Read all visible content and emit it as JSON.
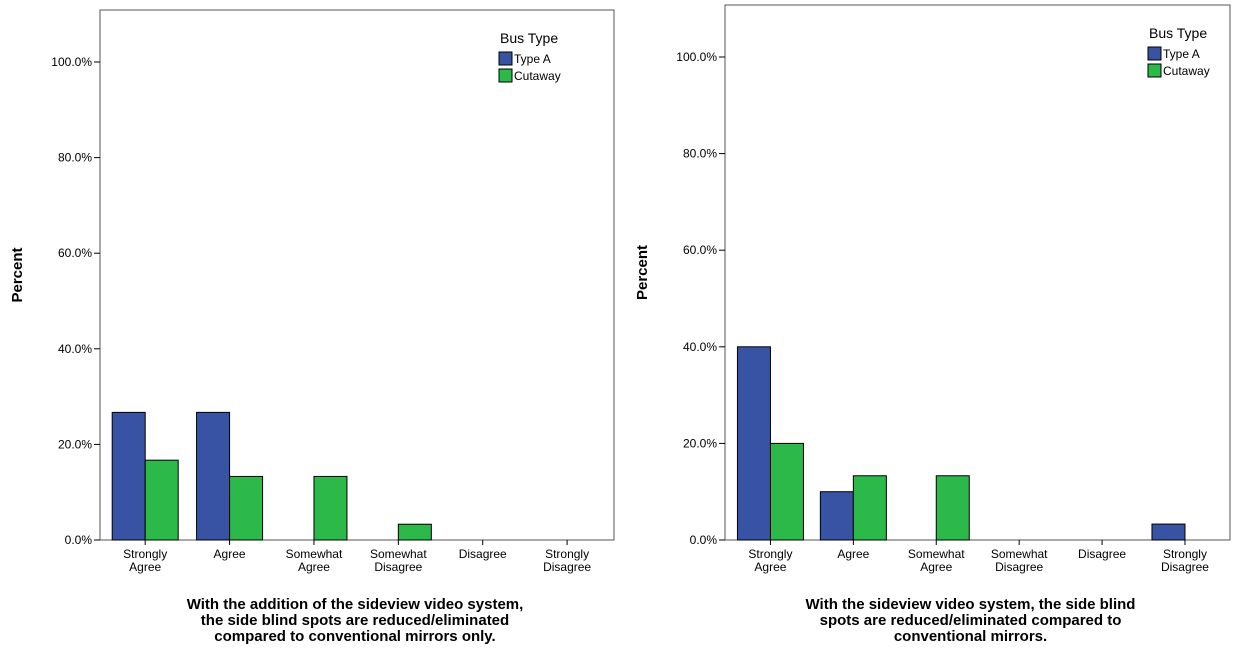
{
  "chart_data": [
    {
      "type": "bar",
      "title": "",
      "ylabel": "Percent",
      "xlabel": [
        "With the addition of the sideview video system,",
        "the side blind spots are reduced/eliminated",
        "compared to conventional mirrors only."
      ],
      "ylim": [
        0,
        100
      ],
      "yticks": [
        0,
        20,
        40,
        60,
        80,
        100
      ],
      "ytick_labels": [
        "0.0%",
        "20.0%",
        "40.0%",
        "60.0%",
        "80.0%",
        "100.0%"
      ],
      "categories": [
        [
          "Strongly",
          "Agree"
        ],
        [
          "Agree"
        ],
        [
          "Somewhat",
          "Agree"
        ],
        [
          "Somewhat",
          "Disagree"
        ],
        [
          "Disagree"
        ],
        [
          "Strongly",
          "Disagree"
        ]
      ],
      "legend": {
        "title": "Bus Type",
        "position": "top-right"
      },
      "series": [
        {
          "name": "Type A",
          "color": "#3953a4",
          "values": [
            26.7,
            26.7,
            0,
            0,
            0,
            0
          ]
        },
        {
          "name": "Cutaway",
          "color": "#2db84a",
          "values": [
            16.7,
            13.3,
            13.3,
            3.3,
            0,
            0
          ]
        }
      ],
      "grid": false
    },
    {
      "type": "bar",
      "title": "",
      "ylabel": "Percent",
      "xlabel": [
        "With the sideview video system, the side blind",
        "spots are reduced/eliminated compared to",
        "conventional mirrors."
      ],
      "ylim": [
        0,
        100
      ],
      "yticks": [
        0,
        20,
        40,
        60,
        80,
        100
      ],
      "ytick_labels": [
        "0.0%",
        "20.0%",
        "40.0%",
        "60.0%",
        "80.0%",
        "100.0%"
      ],
      "categories": [
        [
          "Strongly",
          "Agree"
        ],
        [
          "Agree"
        ],
        [
          "Somewhat",
          "Agree"
        ],
        [
          "Somewhat",
          "Disagree"
        ],
        [
          "Disagree"
        ],
        [
          "Strongly",
          "Disagree"
        ]
      ],
      "legend": {
        "title": "Bus Type",
        "position": "top-right"
      },
      "series": [
        {
          "name": "Type A",
          "color": "#3953a4",
          "values": [
            40,
            10,
            0,
            0,
            0,
            3.3
          ]
        },
        {
          "name": "Cutaway",
          "color": "#2db84a",
          "values": [
            20,
            13.3,
            13.3,
            0,
            0,
            0
          ]
        }
      ],
      "grid": false
    }
  ]
}
